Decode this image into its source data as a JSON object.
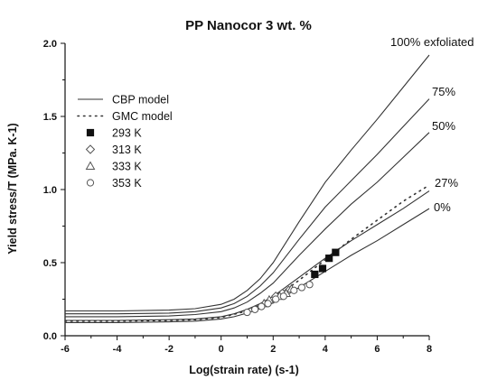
{
  "chart_data": {
    "type": "line",
    "title": "PP Nanocor 3 wt. %",
    "xlabel": "Log(strain rate) (s-1)",
    "ylabel": "Yield stress/T (MPa. K-1)",
    "xlim": [
      -6,
      8
    ],
    "ylim": [
      0,
      2.0
    ],
    "xticks": [
      "-6",
      "-4",
      "-2",
      "0",
      "2",
      "4",
      "6",
      "8"
    ],
    "yticks": [
      "0.0",
      "0.5",
      "1.0",
      "1.5",
      "2.0"
    ],
    "grid": false,
    "legend_position": "upper-left",
    "legend": [
      {
        "label": "CBP model",
        "style": "solid-line"
      },
      {
        "label": "GMC model",
        "style": "dotted-line"
      },
      {
        "label": "293 K",
        "marker": "filled-square"
      },
      {
        "label": "313 K",
        "marker": "open-diamond"
      },
      {
        "label": "333 K",
        "marker": "open-triangle"
      },
      {
        "label": "353 K",
        "marker": "open-circle"
      }
    ],
    "series": [
      {
        "label": "100% exfoliated",
        "style": "solid",
        "x": [
          -6,
          -4,
          -2,
          -1,
          0,
          0.5,
          1,
          1.5,
          2,
          3,
          4,
          5,
          6,
          7,
          8
        ],
        "y": [
          0.17,
          0.17,
          0.175,
          0.185,
          0.215,
          0.25,
          0.31,
          0.39,
          0.5,
          0.78,
          1.05,
          1.27,
          1.48,
          1.7,
          1.92
        ]
      },
      {
        "label": "75%",
        "style": "solid",
        "x": [
          -6,
          -4,
          -2,
          -1,
          0,
          0.5,
          1,
          1.5,
          2,
          3,
          4,
          5,
          6,
          7,
          8
        ],
        "y": [
          0.15,
          0.15,
          0.155,
          0.165,
          0.19,
          0.22,
          0.27,
          0.34,
          0.43,
          0.66,
          0.88,
          1.06,
          1.24,
          1.43,
          1.62
        ]
      },
      {
        "label": "50%",
        "style": "solid",
        "x": [
          -6,
          -4,
          -2,
          -1,
          0,
          0.5,
          1,
          1.5,
          2,
          3,
          4,
          5,
          6,
          7,
          8
        ],
        "y": [
          0.13,
          0.13,
          0.135,
          0.145,
          0.165,
          0.19,
          0.23,
          0.29,
          0.36,
          0.55,
          0.73,
          0.9,
          1.05,
          1.22,
          1.39
        ]
      },
      {
        "label": "27%",
        "style": "solid",
        "x": [
          -6,
          -4,
          -2,
          -1,
          0,
          0.5,
          1,
          1.5,
          2,
          3,
          4,
          5,
          6,
          7,
          8
        ],
        "y": [
          0.105,
          0.105,
          0.11,
          0.115,
          0.13,
          0.15,
          0.18,
          0.22,
          0.27,
          0.4,
          0.53,
          0.65,
          0.76,
          0.87,
          0.99
        ]
      },
      {
        "label": "0%",
        "style": "solid",
        "x": [
          -6,
          -4,
          -2,
          -1,
          0,
          0.5,
          1,
          1.5,
          2,
          3,
          4,
          5,
          6,
          7,
          8
        ],
        "y": [
          0.09,
          0.09,
          0.095,
          0.1,
          0.115,
          0.13,
          0.155,
          0.185,
          0.225,
          0.33,
          0.44,
          0.55,
          0.65,
          0.76,
          0.87
        ]
      },
      {
        "label": "GMC model",
        "style": "dotted",
        "x": [
          -6,
          -4,
          -2,
          -1,
          0,
          1,
          2,
          3,
          4,
          5,
          6,
          7,
          8
        ],
        "y": [
          0.1,
          0.1,
          0.105,
          0.11,
          0.125,
          0.17,
          0.25,
          0.38,
          0.52,
          0.66,
          0.79,
          0.92,
          1.03
        ]
      }
    ],
    "points": [
      {
        "temp": "293 K",
        "marker": "filled-square",
        "x": [
          3.6,
          3.9,
          4.15,
          4.4
        ],
        "y": [
          0.42,
          0.46,
          0.53,
          0.57
        ]
      },
      {
        "temp": "313 K",
        "marker": "open-diamond",
        "x": [
          2.1,
          2.35,
          2.6
        ],
        "y": [
          0.27,
          0.29,
          0.31
        ]
      },
      {
        "temp": "333 K",
        "marker": "open-triangle",
        "x": [
          1.65,
          1.85,
          2.25,
          2.5,
          2.7
        ],
        "y": [
          0.22,
          0.245,
          0.27,
          0.29,
          0.32
        ]
      },
      {
        "temp": "353 K",
        "marker": "open-circle",
        "x": [
          1.0,
          1.3,
          1.55,
          1.8,
          2.1,
          2.4,
          2.8,
          3.1,
          3.4
        ],
        "y": [
          0.16,
          0.18,
          0.2,
          0.22,
          0.25,
          0.27,
          0.31,
          0.33,
          0.35
        ]
      }
    ]
  }
}
